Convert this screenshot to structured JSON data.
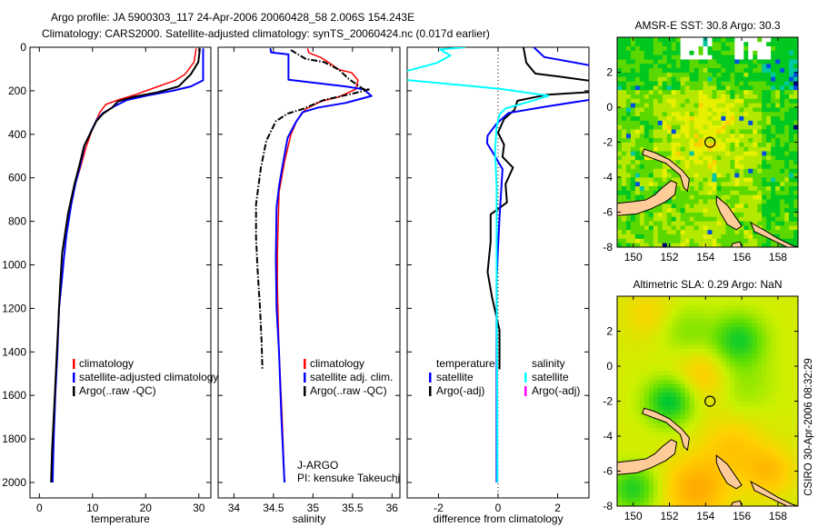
{
  "title": {
    "line1": "Argo profile: JA 5900303_117 24-Apr-2006 20060428_58 2.006S 154.243E",
    "line2": "Climatology: CARS2000. Satellite-adjusted climatology: synTS_20060424.nc (0.017d earlier)"
  },
  "timestamp": "CSIRO 30-Apr-2006 08:32:29",
  "colors": {
    "climatology": "#ff0000",
    "satellite": "#0000ff",
    "argo": "#000000",
    "salinity_satellite": "#00ffff",
    "salinity_argo": "#ff00ff",
    "land": "#ffcc99"
  },
  "chart_data": [
    {
      "type": "line",
      "xlabel": "temperature",
      "ylabel": "",
      "xlim": [
        -1.76,
        32.26
      ],
      "ylim": [
        2071,
        0
      ],
      "xticks": [
        "0",
        "10",
        "20",
        "30"
      ],
      "xtick_values": [
        0,
        10,
        20,
        30
      ],
      "yticks": [
        "0",
        "200",
        "400",
        "600",
        "800",
        "1000",
        "1200",
        "1400",
        "1600",
        "1800",
        "2000"
      ],
      "ytick_values": [
        0,
        200,
        400,
        600,
        800,
        1000,
        1200,
        1400,
        1600,
        1800,
        2000
      ],
      "legend": [
        {
          "label": "climatology",
          "color": "#ff0000"
        },
        {
          "label": "satellite-adjusted climatology",
          "color": "#0000ff"
        },
        {
          "label": "Argo(..raw -QC)",
          "color": "#000000"
        }
      ],
      "series": [
        {
          "name": "climatology",
          "color": "#ff0000",
          "points": [
            [
              29.5,
              5
            ],
            [
              29.1,
              68
            ],
            [
              27.4,
              124
            ],
            [
              25.6,
              152
            ],
            [
              21.7,
              186
            ],
            [
              17.7,
              221
            ],
            [
              14.8,
              242
            ],
            [
              12.5,
              263
            ],
            [
              11.4,
              298
            ],
            [
              10,
              374
            ],
            [
              8.8,
              458
            ],
            [
              7.7,
              555
            ],
            [
              6.8,
              625
            ],
            [
              6.0,
              722
            ],
            [
              5.1,
              862
            ],
            [
              4.6,
              973
            ]
          ]
        },
        {
          "name": "satellite-adjusted",
          "color": "#0000ff",
          "points": [
            [
              30.8,
              5
            ],
            [
              30.8,
              152
            ],
            [
              28.5,
              180
            ],
            [
              25.1,
              200
            ],
            [
              20.5,
              221
            ],
            [
              16.5,
              242
            ],
            [
              14.2,
              270
            ],
            [
              12,
              302
            ],
            [
              10.8,
              333
            ],
            [
              9.7,
              388
            ],
            [
              8.5,
              451
            ],
            [
              7.7,
              541
            ],
            [
              6.8,
              625
            ],
            [
              6.0,
              722
            ],
            [
              5.1,
              862
            ],
            [
              4.6,
              973
            ],
            [
              4.3,
              1056
            ],
            [
              3.7,
              1200
            ],
            [
              3.4,
              1400
            ],
            [
              3.0,
              1600
            ],
            [
              2.7,
              1800
            ],
            [
              2.5,
              2000
            ]
          ]
        },
        {
          "name": "argo",
          "color": "#000000",
          "points": [
            [
              30.2,
              5
            ],
            [
              29.9,
              68
            ],
            [
              28.5,
              124
            ],
            [
              26.2,
              180
            ],
            [
              22.2,
              207
            ],
            [
              17.7,
              228
            ],
            [
              14.8,
              249
            ],
            [
              13.7,
              277
            ],
            [
              12,
              305
            ],
            [
              10.7,
              340
            ],
            [
              9.6,
              395
            ],
            [
              8.4,
              455
            ],
            [
              7.5,
              545
            ],
            [
              6.6,
              630
            ],
            [
              5.4,
              764
            ],
            [
              4.3,
              945
            ],
            [
              3.9,
              1100
            ],
            [
              3.5,
              1300
            ],
            [
              3.2,
              1450
            ],
            [
              2.8,
              1650
            ],
            [
              2.4,
              1850
            ],
            [
              2.2,
              2000
            ]
          ]
        }
      ]
    },
    {
      "type": "line",
      "xlabel": "salinity",
      "xlim": [
        33.8,
        36.1
      ],
      "ylim": [
        2071,
        0
      ],
      "xticks": [
        "34",
        "34.5",
        "35",
        "35.5",
        "36"
      ],
      "xtick_values": [
        34,
        34.5,
        35,
        35.5,
        36
      ],
      "legend": [
        {
          "label": "climatology",
          "color": "#ff0000"
        },
        {
          "label": "satellite adj. clim.",
          "color": "#0000ff"
        },
        {
          "label": "Argo(..raw -QC)",
          "color": "#000000"
        }
      ],
      "annotations": [
        "J-ARGO",
        "PI: kensuke Takeuchi"
      ],
      "series": [
        {
          "name": "climatology",
          "color": "#ff0000",
          "points": [
            [
              34.93,
              5
            ],
            [
              34.95,
              26
            ],
            [
              35.1,
              47
            ],
            [
              35.22,
              75
            ],
            [
              35.33,
              103
            ],
            [
              35.49,
              117
            ],
            [
              35.57,
              152
            ],
            [
              35.54,
              193
            ],
            [
              35.33,
              228
            ],
            [
              35.1,
              249
            ],
            [
              34.91,
              284
            ],
            [
              34.8,
              333
            ],
            [
              34.72,
              402
            ],
            [
              34.64,
              527
            ],
            [
              34.57,
              667
            ],
            [
              34.55,
              945
            ],
            [
              34.55,
              1100
            ],
            [
              34.57,
              1400
            ],
            [
              34.61,
              1700
            ],
            [
              34.64,
              2000
            ]
          ]
        },
        {
          "name": "satellite-adjusted",
          "color": "#0000ff",
          "points": [
            [
              34.46,
              5
            ],
            [
              34.47,
              24
            ],
            [
              34.69,
              33
            ],
            [
              34.69,
              149
            ],
            [
              35.41,
              180
            ],
            [
              35.64,
              193
            ],
            [
              35.74,
              224
            ],
            [
              35.41,
              256
            ],
            [
              35.07,
              277
            ],
            [
              34.87,
              298
            ],
            [
              34.78,
              347
            ],
            [
              34.68,
              416
            ],
            [
              34.61,
              555
            ],
            [
              34.57,
              639
            ],
            [
              34.54,
              736
            ],
            [
              34.53,
              973
            ],
            [
              34.54,
              1200
            ],
            [
              34.57,
              1400
            ],
            [
              34.6,
              1700
            ],
            [
              34.64,
              2000
            ]
          ]
        },
        {
          "name": "argo",
          "color": "#000000",
          "points": [
            [
              34.72,
              13
            ],
            [
              34.91,
              54
            ],
            [
              35.14,
              68
            ],
            [
              35.33,
              103
            ],
            [
              35.45,
              145
            ],
            [
              35.64,
              193
            ],
            [
              35.72,
              193
            ],
            [
              35.49,
              214
            ],
            [
              35.14,
              242
            ],
            [
              34.87,
              284
            ],
            [
              34.68,
              305
            ],
            [
              34.53,
              340
            ],
            [
              34.41,
              430
            ],
            [
              34.34,
              555
            ],
            [
              34.28,
              722
            ],
            [
              34.28,
              875
            ],
            [
              34.3,
              1029
            ],
            [
              34.33,
              1200
            ],
            [
              34.35,
              1350
            ],
            [
              34.36,
              1480
            ]
          ]
        }
      ]
    },
    {
      "type": "line",
      "xlabel": "difference from climatology",
      "xlim": [
        -3.05,
        3.05
      ],
      "ylim": [
        2071,
        0
      ],
      "xticks": [
        "-2",
        "0",
        "2"
      ],
      "xtick_values": [
        -2,
        0,
        2
      ],
      "legend_groups": [
        {
          "title": "temperature",
          "items": [
            {
              "label": "satellite",
              "color": "#0000ff"
            },
            {
              "label": "Argo(-adj)",
              "color": "#000000"
            }
          ]
        },
        {
          "title": "salinity",
          "items": [
            {
              "label": "satellite",
              "color": "#00ffff"
            },
            {
              "label": "Argo(-adj)",
              "color": "#ff00ff"
            }
          ]
        }
      ],
      "series": [
        {
          "name": "temperature-argo",
          "color": "#000000",
          "points": [
            [
              0.85,
              0
            ],
            [
              0.95,
              72
            ],
            [
              1.25,
              121
            ],
            [
              2.05,
              135
            ],
            [
              3.2,
              156
            ],
            [
              3.2,
              205
            ],
            [
              1.65,
              218
            ],
            [
              0.65,
              246
            ],
            [
              0.55,
              288
            ],
            [
              0.2,
              330
            ],
            [
              0,
              392
            ],
            [
              0.2,
              448
            ],
            [
              0.15,
              504
            ],
            [
              0.5,
              553
            ],
            [
              0.25,
              629
            ],
            [
              0.3,
              713
            ],
            [
              -0.25,
              768
            ],
            [
              -0.25,
              894
            ],
            [
              -0.35,
              1033
            ],
            [
              -0.2,
              1150
            ],
            [
              0.05,
              1300
            ],
            [
              0.05,
              1480
            ]
          ]
        },
        {
          "name": "temperature-satellite",
          "color": "#0000ff",
          "points": [
            [
              1.2,
              0
            ],
            [
              1.55,
              45
            ],
            [
              3.2,
              86
            ],
            [
              3.2,
              239
            ],
            [
              1.55,
              274
            ],
            [
              0.35,
              302
            ],
            [
              -0.05,
              351
            ],
            [
              -0.35,
              406
            ],
            [
              -0.37,
              441
            ],
            [
              -0.15,
              490
            ],
            [
              0.15,
              560
            ],
            [
              0.05,
              782
            ],
            [
              -0.05,
              1060
            ],
            [
              -0.05,
              1500
            ],
            [
              -0.05,
              2000
            ]
          ]
        },
        {
          "name": "salinity-satellite",
          "color": "#00ffff",
          "points": [
            [
              -1.1,
              0
            ],
            [
              -1.95,
              10
            ],
            [
              -1.6,
              38
            ],
            [
              -2.05,
              72
            ],
            [
              -3.2,
              114
            ],
            [
              -3.2,
              149
            ],
            [
              0.05,
              191
            ],
            [
              1.7,
              223
            ],
            [
              1.15,
              246
            ],
            [
              0.25,
              281
            ],
            [
              0.05,
              309
            ],
            [
              -0.05,
              365
            ],
            [
              -0.1,
              476
            ],
            [
              -0.05,
              643
            ],
            [
              -0.05,
              1116
            ],
            [
              -0.03,
              1500
            ],
            [
              -0.02,
              2000
            ]
          ]
        }
      ]
    }
  ],
  "maps": [
    {
      "name": "sst",
      "title": "AMSR-E SST: 30.8 Argo: 30.3",
      "lon_range": [
        149.11,
        159.11
      ],
      "lat_range": [
        -8,
        4
      ],
      "lon_ticks": [
        "150",
        "152",
        "154",
        "156",
        "158"
      ],
      "lat_ticks": [
        "2",
        "0",
        "-2",
        "-4",
        "-6",
        "-8"
      ]
    },
    {
      "name": "sla",
      "title": "Altimetric SLA: 0.29 Argo: NaN",
      "lon_range": [
        149.11,
        159.11
      ],
      "lat_range": [
        -8,
        4
      ],
      "lon_ticks": [
        "150",
        "152",
        "154",
        "156",
        "158"
      ],
      "lat_ticks": [
        "2",
        "0",
        "-2",
        "-4",
        "-6",
        "-8"
      ]
    }
  ],
  "argo_position": {
    "lon": 154.243,
    "lat": -2.006
  }
}
